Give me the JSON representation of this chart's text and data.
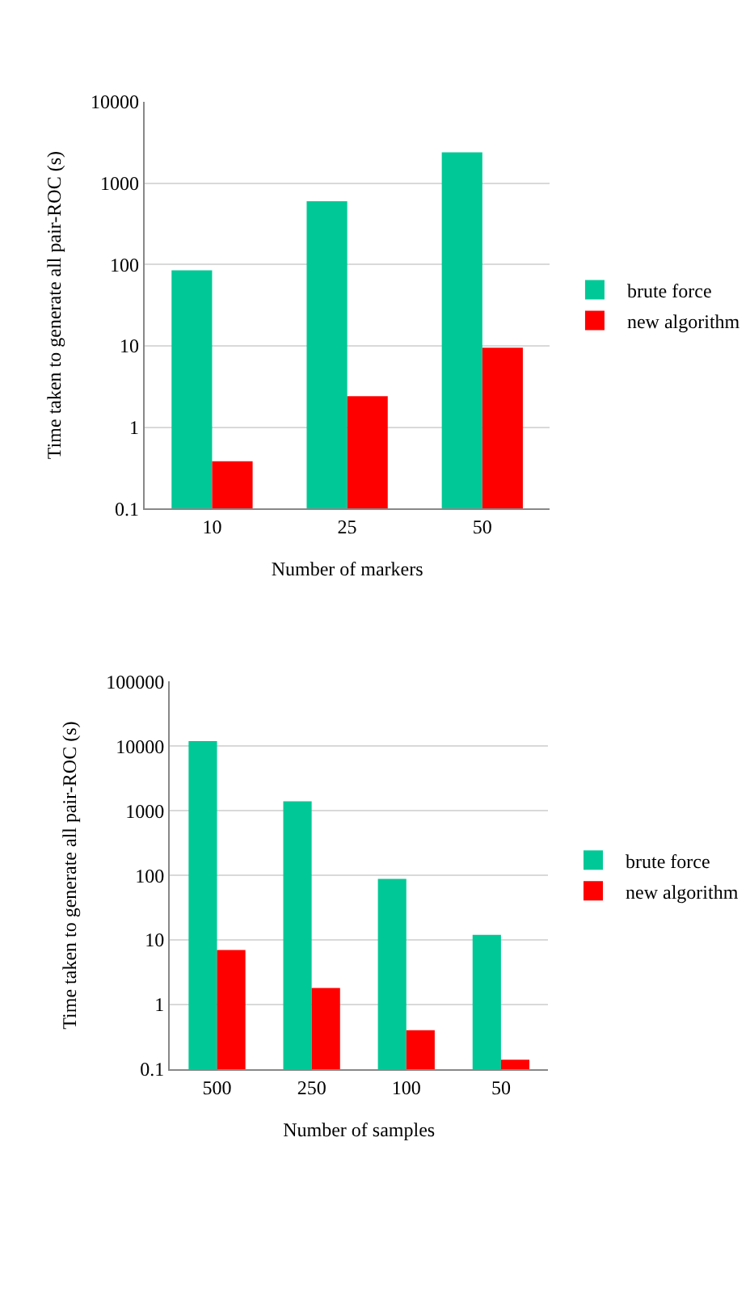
{
  "chart_data": [
    {
      "type": "bar",
      "xlabel": "Number of markers",
      "ylabel": "Time taken to generate all pair-ROC (s)",
      "categories": [
        "10",
        "25",
        "50"
      ],
      "log": true,
      "ylim": [
        0.1,
        10000
      ],
      "yticks": [
        0.1,
        1,
        10,
        100,
        1000,
        10000
      ],
      "grid": "y",
      "legend": "right",
      "series": [
        {
          "name": "brute force",
          "color": "#00c896",
          "values": [
            85,
            600,
            2400
          ]
        },
        {
          "name": "new algorithm",
          "color": "#ff0000",
          "values": [
            0.38,
            2.4,
            9.5
          ]
        }
      ]
    },
    {
      "type": "bar",
      "xlabel": "Number of samples",
      "ylabel": "Time taken to generate all pair-ROC (s)",
      "categories": [
        "500",
        "250",
        "100",
        "50"
      ],
      "log": true,
      "ylim": [
        0.1,
        100000
      ],
      "yticks": [
        0.1,
        1,
        10,
        100,
        1000,
        10000,
        100000
      ],
      "grid": "y",
      "legend": "right",
      "series": [
        {
          "name": "brute force",
          "color": "#00c896",
          "values": [
            12000,
            1400,
            88,
            12
          ]
        },
        {
          "name": "new algorithm",
          "color": "#ff0000",
          "values": [
            7,
            1.8,
            0.4,
            0.14
          ]
        }
      ]
    }
  ]
}
